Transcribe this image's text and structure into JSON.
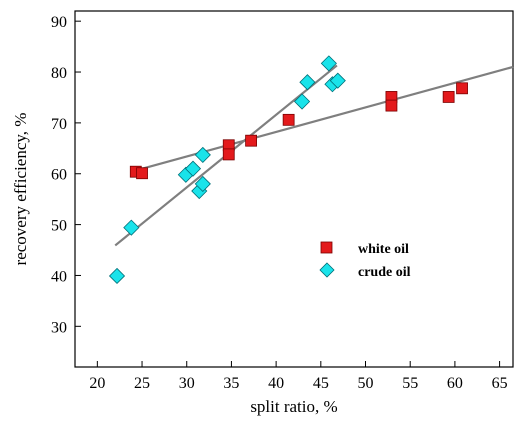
{
  "chart_data": {
    "type": "scatter",
    "xlabel": "split ratio, %",
    "ylabel": "recovery efficiency, %",
    "xlim": [
      17.5,
      66.5
    ],
    "ylim": [
      22,
      92
    ],
    "xticks": [
      20,
      25,
      30,
      35,
      40,
      45,
      50,
      55,
      60,
      65
    ],
    "yticks": [
      30,
      40,
      50,
      60,
      70,
      80,
      90
    ],
    "grid": false,
    "legend": {
      "placement": "center-right"
    },
    "series": [
      {
        "name": "white oil",
        "marker": "square",
        "color": "#e31a1c",
        "points": [
          [
            24.3,
            60.4
          ],
          [
            25.0,
            60.1
          ],
          [
            34.7,
            65.6
          ],
          [
            34.7,
            63.8
          ],
          [
            37.2,
            66.5
          ],
          [
            41.4,
            70.6
          ],
          [
            52.9,
            75.1
          ],
          [
            52.9,
            73.4
          ],
          [
            59.3,
            75.1
          ],
          [
            60.8,
            76.8
          ]
        ],
        "trend": [
          [
            24.0,
            60.5
          ],
          [
            66.5,
            81.0
          ]
        ]
      },
      {
        "name": "crude oil",
        "marker": "diamond",
        "color": "#19e3ea",
        "points": [
          [
            22.2,
            39.9
          ],
          [
            23.8,
            49.4
          ],
          [
            29.9,
            59.8
          ],
          [
            30.7,
            61.0
          ],
          [
            31.4,
            56.6
          ],
          [
            31.8,
            58.0
          ],
          [
            31.8,
            63.7
          ],
          [
            42.9,
            74.2
          ],
          [
            43.5,
            78.0
          ],
          [
            45.9,
            81.7
          ],
          [
            46.3,
            77.6
          ],
          [
            46.9,
            78.3
          ]
        ],
        "trend": [
          [
            22.0,
            45.9
          ],
          [
            46.8,
            81.3
          ]
        ]
      }
    ]
  }
}
